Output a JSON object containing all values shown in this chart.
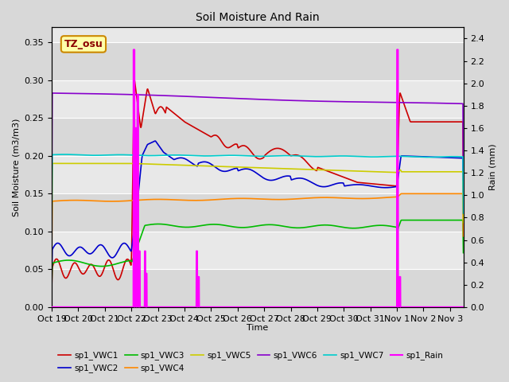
{
  "title": "Soil Moisture And Rain",
  "ylabel_left": "Soil Moisture (m3/m3)",
  "ylabel_right": "Rain (mm)",
  "xlabel": "Time",
  "station_label": "TZ_osu",
  "ylim_left": [
    0,
    0.37
  ],
  "ylim_right": [
    0,
    2.5
  ],
  "x_tick_labels": [
    "Oct 19",
    "Oct 20",
    "Oct 21",
    "Oct 22",
    "Oct 23",
    "Oct 24",
    "Oct 25",
    "Oct 26",
    "Oct 27",
    "Oct 28",
    "Oct 29",
    "Oct 30",
    "Oct 31",
    "Nov 1",
    "Nov 2",
    "Nov 3"
  ],
  "series_colors": {
    "VWC1": "#cc0000",
    "VWC2": "#0000cc",
    "VWC3": "#00bb00",
    "VWC4": "#ff8800",
    "VWC5": "#cccc00",
    "VWC6": "#8800cc",
    "VWC7": "#00cccc",
    "Rain": "#ff00ff"
  },
  "legend_entries": [
    "sp1_VWC1",
    "sp1_VWC2",
    "sp1_VWC3",
    "sp1_VWC4",
    "sp1_VWC5",
    "sp1_VWC6",
    "sp1_VWC7",
    "sp1_Rain"
  ]
}
